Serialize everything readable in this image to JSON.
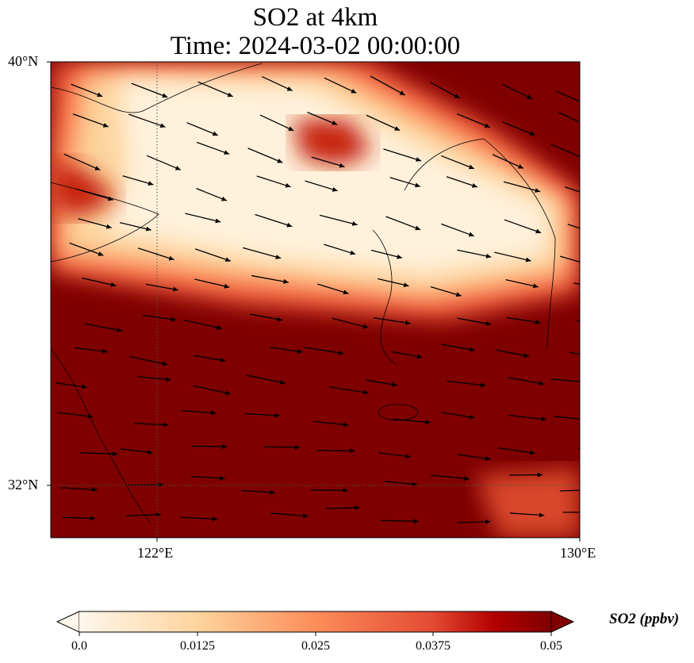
{
  "title": {
    "line1": "SO2 at 4km",
    "line2": "Time: 2024-03-02 00:00:00"
  },
  "map": {
    "lat_labels": [
      "40°N",
      "32°N"
    ],
    "lon_labels": [
      "122°E",
      "130°E"
    ],
    "extent": {
      "lon": [
        120,
        130
      ],
      "lat": [
        31,
        40
      ]
    }
  },
  "colorbar": {
    "label": "SO2 (ppbv)",
    "ticks": [
      "0.0",
      "0.0125",
      "0.025",
      "0.0375",
      "0.05"
    ],
    "range": [
      0,
      0.05
    ],
    "extend": "both",
    "colormap": "OrRd",
    "colors": [
      "#fff7ec",
      "#fdd49e",
      "#fc8d59",
      "#d7301f",
      "#b30000",
      "#7f0000"
    ]
  }
}
